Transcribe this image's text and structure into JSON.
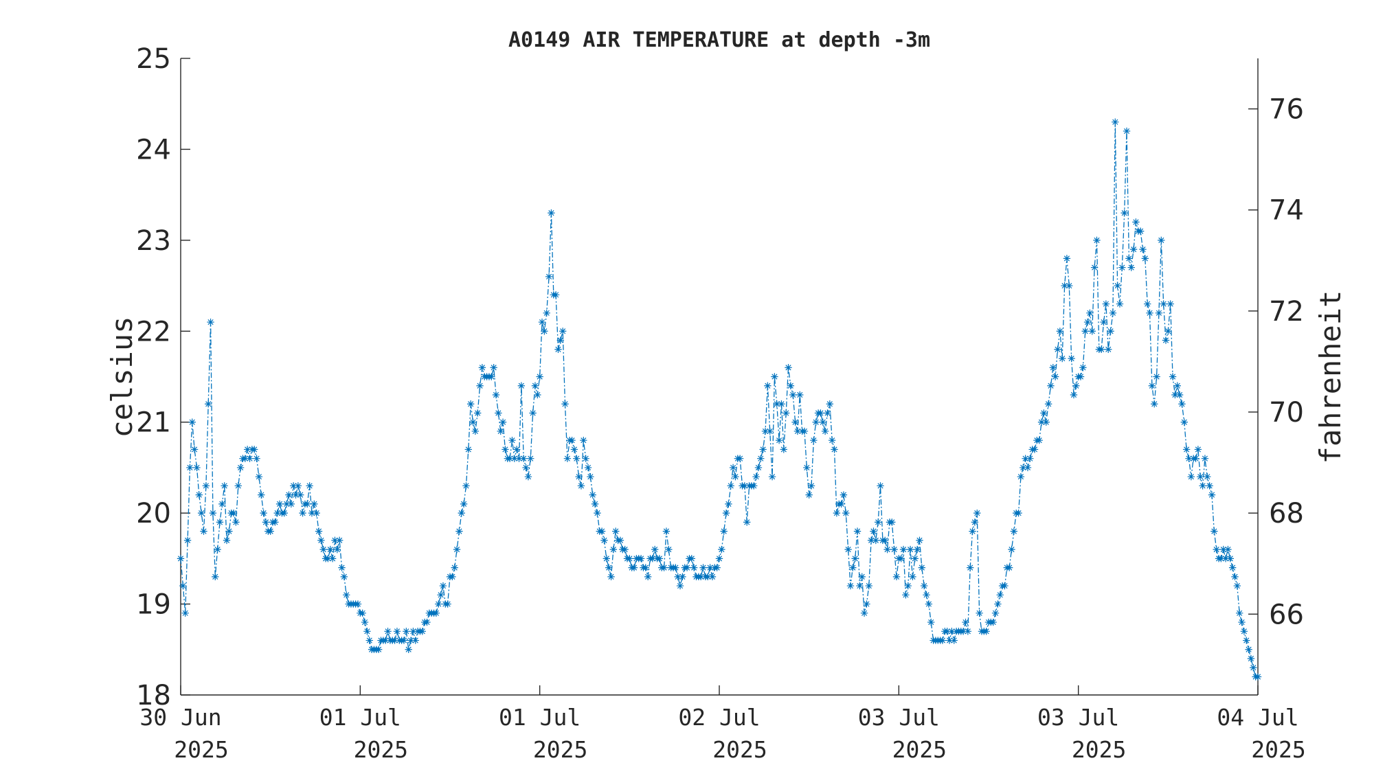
{
  "chart_data": {
    "type": "line",
    "title": "A0149 AIR TEMPERATURE at depth -3m",
    "ylabel": "celsius",
    "y2label": "fahrenheit",
    "ylim": [
      18,
      25
    ],
    "y2lim": [
      64.4,
      77.0
    ],
    "yticks": [
      "18",
      "19",
      "20",
      "21",
      "22",
      "23",
      "24",
      "25"
    ],
    "y2ticks": [
      "66",
      "68",
      "70",
      "72",
      "74",
      "76"
    ],
    "xticks": [
      {
        "day": "30 Jun",
        "year": "2025"
      },
      {
        "day": "01 Jul",
        "year": "2025"
      },
      {
        "day": "01 Jul",
        "year": "2025"
      },
      {
        "day": "02 Jul",
        "year": "2025"
      },
      {
        "day": "03 Jul",
        "year": "2025"
      },
      {
        "day": "03 Jul",
        "year": "2025"
      },
      {
        "day": "04 Jul",
        "year": "2025"
      }
    ],
    "grid": false,
    "marker": "asterisk",
    "line_style": "dash-dot",
    "color": "#0072BD",
    "series": [
      {
        "values": [
          19.5,
          19.2,
          18.9,
          19.7,
          20.5,
          21.0,
          20.7,
          20.5,
          20.2,
          20.0,
          19.8,
          20.3,
          21.2,
          22.1,
          20.0,
          19.3,
          19.6,
          19.9,
          20.1,
          20.3,
          19.7,
          19.8,
          20.0,
          20.0,
          19.9,
          20.3,
          20.5,
          20.6,
          20.6,
          20.7,
          20.6,
          20.7,
          20.7,
          20.6,
          20.4,
          20.2,
          20.0,
          19.9,
          19.8,
          19.8,
          19.9,
          19.9,
          20.0,
          20.1,
          20.0,
          20.0,
          20.1,
          20.2,
          20.1,
          20.3,
          20.2,
          20.3,
          20.2,
          20.0,
          20.1,
          20.1,
          20.3,
          20.0,
          20.1,
          20.0,
          19.8,
          19.7,
          19.6,
          19.5,
          19.5,
          19.6,
          19.5,
          19.7,
          19.6,
          19.7,
          19.4,
          19.3,
          19.1,
          19.0,
          19.0,
          19.0,
          19.0,
          19.0,
          18.9,
          18.9,
          18.8,
          18.7,
          18.6,
          18.5,
          18.5,
          18.5,
          18.5,
          18.6,
          18.6,
          18.6,
          18.7,
          18.6,
          18.6,
          18.6,
          18.7,
          18.6,
          18.6,
          18.6,
          18.7,
          18.5,
          18.6,
          18.7,
          18.6,
          18.7,
          18.7,
          18.7,
          18.8,
          18.8,
          18.9,
          18.9,
          18.9,
          18.9,
          19.0,
          19.1,
          19.2,
          19.0,
          19.0,
          19.3,
          19.3,
          19.4,
          19.6,
          19.8,
          20.0,
          20.1,
          20.3,
          20.7,
          21.2,
          21.0,
          20.9,
          21.1,
          21.4,
          21.6,
          21.5,
          21.5,
          21.5,
          21.5,
          21.6,
          21.3,
          21.1,
          20.9,
          21.0,
          20.7,
          20.6,
          20.6,
          20.8,
          20.6,
          20.7,
          20.6,
          21.4,
          20.6,
          20.5,
          20.4,
          20.6,
          21.1,
          21.4,
          21.3,
          21.5,
          22.1,
          22.0,
          22.2,
          22.6,
          23.3,
          22.4,
          22.4,
          21.8,
          21.9,
          22.0,
          21.2,
          20.6,
          20.8,
          20.8,
          20.7,
          20.6,
          20.4,
          20.3,
          20.8,
          20.6,
          20.5,
          20.4,
          20.2,
          20.1,
          20.0,
          19.8,
          19.8,
          19.7,
          19.5,
          19.4,
          19.3,
          19.6,
          19.8,
          19.7,
          19.7,
          19.6,
          19.6,
          19.5,
          19.5,
          19.4,
          19.4,
          19.5,
          19.5,
          19.5,
          19.4,
          19.4,
          19.3,
          19.5,
          19.5,
          19.6,
          19.5,
          19.5,
          19.4,
          19.4,
          19.8,
          19.6,
          19.4,
          19.4,
          19.4,
          19.3,
          19.2,
          19.3,
          19.4,
          19.4,
          19.5,
          19.5,
          19.4,
          19.3,
          19.3,
          19.3,
          19.4,
          19.3,
          19.3,
          19.4,
          19.3,
          19.4,
          19.4,
          19.5,
          19.6,
          19.8,
          20.0,
          20.1,
          20.3,
          20.5,
          20.4,
          20.6,
          20.6,
          20.3,
          20.3,
          19.9,
          20.3,
          20.3,
          20.3,
          20.4,
          20.5,
          20.6,
          20.7,
          20.9,
          21.4,
          20.9,
          20.4,
          21.5,
          21.2,
          20.8,
          21.2,
          20.7,
          21.1,
          21.6,
          21.4,
          21.3,
          21.0,
          20.9,
          21.3,
          20.9,
          20.9,
          20.5,
          20.2,
          20.3,
          20.8,
          21.0,
          21.1,
          21.1,
          21.0,
          20.9,
          21.1,
          21.2,
          20.8,
          20.7,
          20.0,
          20.1,
          20.1,
          20.2,
          20.0,
          19.6,
          19.2,
          19.4,
          19.5,
          19.8,
          19.2,
          19.3,
          18.9,
          19.0,
          19.2,
          19.7,
          19.8,
          19.7,
          19.9,
          20.3,
          19.7,
          19.7,
          19.6,
          19.9,
          19.9,
          19.6,
          19.3,
          19.5,
          19.5,
          19.6,
          19.1,
          19.2,
          19.6,
          19.3,
          19.5,
          19.6,
          19.7,
          19.4,
          19.2,
          19.1,
          19.0,
          18.8,
          18.6,
          18.6,
          18.6,
          18.6,
          18.6,
          18.7,
          18.7,
          18.6,
          18.7,
          18.6,
          18.7,
          18.7,
          18.7,
          18.7,
          18.8,
          18.7,
          19.4,
          19.8,
          19.9,
          20.0,
          18.9,
          18.7,
          18.7,
          18.7,
          18.8,
          18.8,
          18.8,
          18.9,
          19.0,
          19.1,
          19.2,
          19.2,
          19.4,
          19.4,
          19.6,
          19.8,
          20.0,
          20.0,
          20.4,
          20.5,
          20.6,
          20.5,
          20.6,
          20.7,
          20.7,
          20.8,
          20.8,
          21.0,
          21.1,
          21.0,
          21.2,
          21.4,
          21.6,
          21.5,
          21.8,
          22.0,
          21.7,
          22.5,
          22.8,
          22.5,
          21.7,
          21.3,
          21.4,
          21.5,
          21.5,
          21.6,
          22.0,
          22.1,
          22.2,
          22.0,
          22.7,
          23.0,
          21.8,
          21.8,
          22.1,
          22.3,
          21.8,
          22.0,
          22.2,
          24.3,
          22.5,
          22.3,
          22.7,
          23.3,
          24.2,
          22.8,
          22.7,
          22.9,
          23.2,
          23.1,
          23.1,
          22.9,
          22.8,
          22.3,
          22.2,
          21.4,
          21.2,
          21.5,
          22.2,
          23.0,
          22.3,
          21.9,
          22.0,
          22.3,
          21.5,
          21.3,
          21.4,
          21.3,
          21.2,
          21.0,
          20.7,
          20.6,
          20.4,
          20.6,
          20.6,
          20.7,
          20.4,
          20.3,
          20.6,
          20.4,
          20.3,
          20.2,
          19.8,
          19.6,
          19.5,
          19.5,
          19.6,
          19.5,
          19.6,
          19.5,
          19.4,
          19.3,
          19.2,
          18.9,
          18.8,
          18.7,
          18.6,
          18.5,
          18.4,
          18.3,
          18.2,
          18.2
        ]
      }
    ]
  }
}
